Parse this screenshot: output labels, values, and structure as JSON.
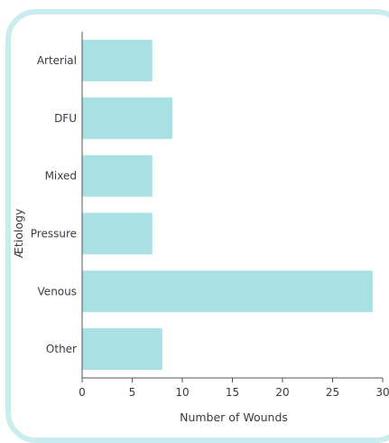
{
  "chart_data": {
    "type": "bar",
    "orientation": "horizontal",
    "categories": [
      "Arterial",
      "DFU",
      "Mixed",
      "Pressure",
      "Venous",
      "Other"
    ],
    "values": [
      7,
      9,
      7,
      7,
      29,
      8
    ],
    "xlabel": "Number of Wounds",
    "ylabel": "Ætiology",
    "xlim": [
      0,
      30
    ],
    "xticks": [
      0,
      5,
      10,
      15,
      20,
      25,
      30
    ],
    "grid": false,
    "colors": {
      "bar": "#a8e0e3",
      "axis": "#555555",
      "frame": "#c9ecee"
    }
  }
}
